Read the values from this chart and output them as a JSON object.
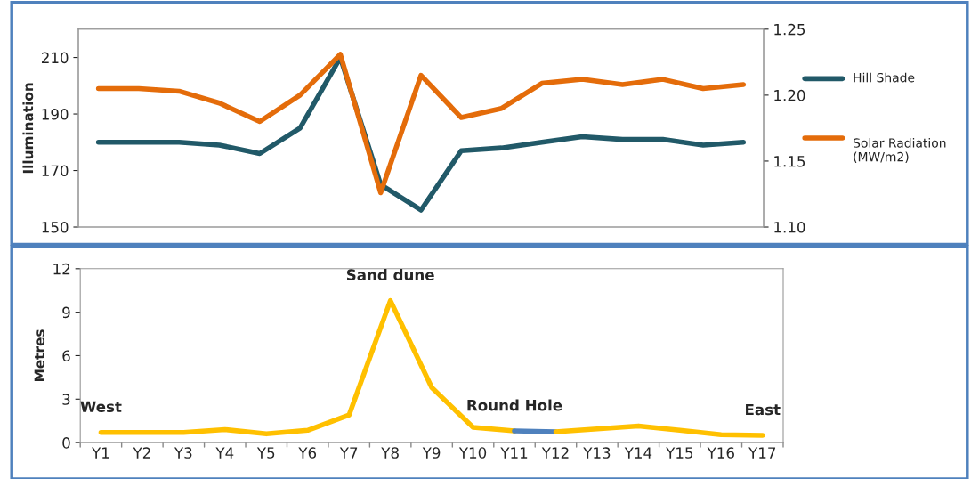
{
  "chart_data": [
    {
      "type": "line",
      "categories": [
        null,
        null,
        null,
        null,
        null,
        null,
        null,
        null,
        null,
        null,
        null,
        null,
        null,
        null,
        null,
        null,
        null
      ],
      "ylabel": "Illumination",
      "ylim": [
        150,
        220
      ],
      "yticks": [
        150,
        170,
        190,
        210
      ],
      "y2lim": [
        1.1,
        1.25
      ],
      "y2ticks": [
        {
          "value": 1.1,
          "label": "1.10"
        },
        1.15,
        {
          "value": 1.2,
          "label": "1.20"
        },
        1.25
      ],
      "series": [
        {
          "name": "Hill Shade",
          "color": "#215968",
          "values": [
            180,
            180,
            180,
            179,
            176,
            185,
            210,
            165,
            156,
            177,
            178,
            180,
            182,
            181,
            181,
            179,
            180
          ]
        },
        {
          "name": "Solar Radiation (MW/m2)",
          "color": "#e46c0a",
          "axis": "y2",
          "values": [
            1.205,
            1.205,
            1.203,
            1.194,
            1.18,
            1.2,
            1.231,
            1.126,
            1.215,
            1.183,
            1.19,
            1.209,
            1.212,
            1.208,
            1.212,
            1.205,
            1.208
          ]
        }
      ],
      "legend": "right",
      "grid": false,
      "tick_labels": "y"
    },
    {
      "type": "line",
      "categories": [
        "Y1",
        "Y2",
        "Y3",
        "Y4",
        "Y5",
        "Y6",
        "Y7",
        "Y8",
        "Y9",
        "Y10",
        "Y11",
        "Y12",
        "Y13",
        "Y14",
        "Y15",
        "Y16",
        "Y17"
      ],
      "ylabel": "Metres",
      "ylim": [
        0,
        12
      ],
      "yticks": [
        0,
        3,
        6,
        9,
        12
      ],
      "series": [
        {
          "color": "#ffc000",
          "values": [
            0.7,
            0.7,
            0.7,
            0.9,
            0.6,
            0.85,
            1.9,
            9.8,
            3.8,
            1.05,
            0.8,
            null,
            null,
            null,
            null,
            null,
            null
          ]
        },
        {
          "color": "#4f81bd",
          "values": [
            null,
            null,
            null,
            null,
            null,
            null,
            null,
            null,
            null,
            null,
            0.8,
            0.75,
            null,
            null,
            null,
            null,
            null
          ]
        },
        {
          "color": "#ffc000",
          "values": [
            null,
            null,
            null,
            null,
            null,
            null,
            null,
            null,
            null,
            null,
            null,
            0.75,
            0.95,
            1.15,
            0.85,
            0.55,
            0.5
          ]
        }
      ],
      "annotations": [
        {
          "text": "West",
          "x": "Y1",
          "y": 0.7
        },
        {
          "text": "Sand dune",
          "x": "Y8",
          "y": 9.8
        },
        {
          "text": "Round Hole",
          "x": "Y11",
          "y": 0.8
        },
        {
          "text": "East",
          "x": "Y17",
          "y": 0.5
        }
      ],
      "legend": false,
      "grid": false
    }
  ]
}
